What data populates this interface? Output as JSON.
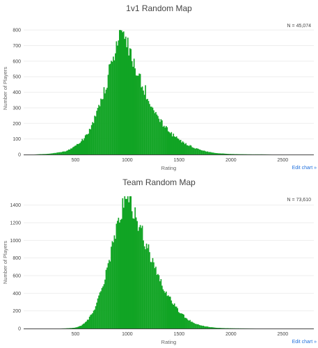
{
  "colors": {
    "bar": "#11a424",
    "grid": "#eeeeee",
    "text": "#444444",
    "link": "#1f6fdc"
  },
  "edit_link_label": "Edit chart »",
  "chart_data": [
    {
      "type": "bar",
      "title": "1v1 Random Map",
      "xlabel": "Rating",
      "ylabel": "Number of Players",
      "legend_text": "N = 45,074",
      "legend_position": "top-right",
      "grid": true,
      "xlim": [
        0,
        2800
      ],
      "ylim": [
        0,
        850
      ],
      "xticks": [
        500,
        1000,
        1500,
        2000,
        2500
      ],
      "yticks": [
        0,
        100,
        200,
        300,
        400,
        500,
        600,
        700,
        800
      ],
      "bin_width": 10,
      "peak": {
        "x": 930,
        "y": 800
      },
      "bins": [
        [
          0,
          0
        ],
        [
          100,
          0
        ],
        [
          150,
          2
        ],
        [
          200,
          3
        ],
        [
          250,
          5
        ],
        [
          300,
          10
        ],
        [
          350,
          14
        ],
        [
          400,
          20
        ],
        [
          450,
          35
        ],
        [
          500,
          55
        ],
        [
          550,
          80
        ],
        [
          600,
          120
        ],
        [
          650,
          175
        ],
        [
          700,
          250
        ],
        [
          750,
          350
        ],
        [
          800,
          460
        ],
        [
          850,
          600
        ],
        [
          900,
          720
        ],
        [
          930,
          800
        ],
        [
          960,
          770
        ],
        [
          1000,
          700
        ],
        [
          1050,
          600
        ],
        [
          1100,
          510
        ],
        [
          1150,
          440
        ],
        [
          1200,
          370
        ],
        [
          1250,
          300
        ],
        [
          1300,
          240
        ],
        [
          1350,
          190
        ],
        [
          1400,
          150
        ],
        [
          1450,
          120
        ],
        [
          1500,
          95
        ],
        [
          1550,
          75
        ],
        [
          1600,
          58
        ],
        [
          1650,
          42
        ],
        [
          1700,
          30
        ],
        [
          1750,
          22
        ],
        [
          1800,
          15
        ],
        [
          1850,
          10
        ],
        [
          1900,
          7
        ],
        [
          1950,
          5
        ],
        [
          2000,
          3
        ],
        [
          2100,
          2
        ],
        [
          2200,
          1
        ],
        [
          2300,
          1
        ],
        [
          2400,
          0
        ]
      ]
    },
    {
      "type": "bar",
      "title": "Team Random Map",
      "xlabel": "Rating",
      "ylabel": "Number of Players",
      "legend_text": "N = 73,610",
      "legend_position": "top-right",
      "grid": true,
      "xlim": [
        0,
        2800
      ],
      "ylim": [
        0,
        1500
      ],
      "xticks": [
        500,
        1000,
        1500,
        2000,
        2500
      ],
      "yticks": [
        0,
        200,
        400,
        600,
        800,
        1000,
        1200,
        1400
      ],
      "bin_width": 10,
      "peak": {
        "x": 990,
        "y": 1470
      },
      "bins": [
        [
          0,
          0
        ],
        [
          350,
          0
        ],
        [
          400,
          2
        ],
        [
          450,
          5
        ],
        [
          500,
          10
        ],
        [
          550,
          30
        ],
        [
          600,
          70
        ],
        [
          650,
          150
        ],
        [
          700,
          270
        ],
        [
          750,
          430
        ],
        [
          800,
          650
        ],
        [
          850,
          920
        ],
        [
          900,
          1200
        ],
        [
          950,
          1400
        ],
        [
          990,
          1470
        ],
        [
          1030,
          1420
        ],
        [
          1080,
          1280
        ],
        [
          1130,
          1120
        ],
        [
          1180,
          950
        ],
        [
          1230,
          800
        ],
        [
          1280,
          650
        ],
        [
          1330,
          520
        ],
        [
          1380,
          400
        ],
        [
          1430,
          300
        ],
        [
          1480,
          220
        ],
        [
          1530,
          160
        ],
        [
          1580,
          110
        ],
        [
          1630,
          70
        ],
        [
          1680,
          45
        ],
        [
          1730,
          30
        ],
        [
          1780,
          20
        ],
        [
          1830,
          12
        ],
        [
          1880,
          7
        ],
        [
          1950,
          4
        ],
        [
          2050,
          2
        ],
        [
          2150,
          1
        ],
        [
          2250,
          0
        ]
      ]
    }
  ]
}
